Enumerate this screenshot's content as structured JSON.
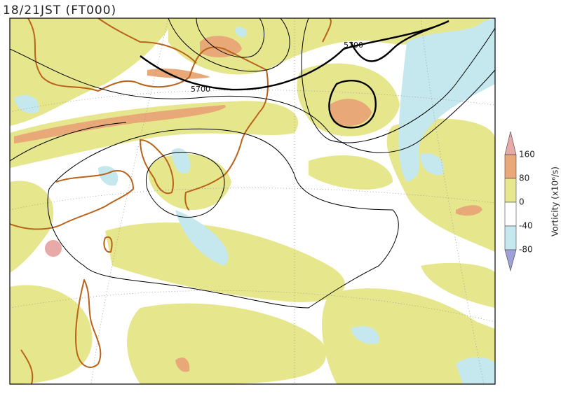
{
  "header": {
    "title": "18/21JST (FT000)"
  },
  "map": {
    "contour_labels": [
      "5700",
      "5700"
    ]
  },
  "colorbar": {
    "label": "Vorticity (x10⁶/s)",
    "ticks": [
      "160",
      "80",
      "0",
      "-40",
      "-80"
    ],
    "colors": [
      "#e8aaa8",
      "#e8a878",
      "#e6e68c",
      "#ffffff",
      "#c4e8ee",
      "#9ea0d8"
    ]
  }
}
